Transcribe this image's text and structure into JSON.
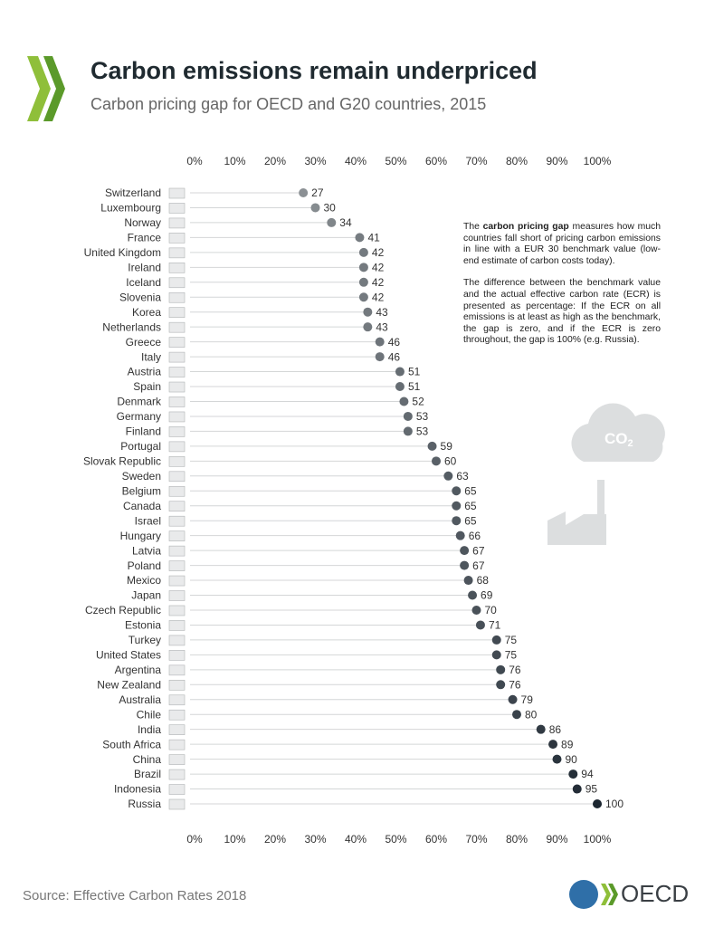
{
  "chart_data": {
    "type": "dot",
    "title": "Carbon emissions remain underpriced",
    "subtitle": "Carbon pricing gap for OECD and G20 countries, 2015",
    "categories": [
      "Switzerland",
      "Luxembourg",
      "Norway",
      "France",
      "United Kingdom",
      "Ireland",
      "Iceland",
      "Slovenia",
      "Korea",
      "Netherlands",
      "Greece",
      "Italy",
      "Austria",
      "Spain",
      "Denmark",
      "Germany",
      "Finland",
      "Portugal",
      "Slovak Republic",
      "Sweden",
      "Belgium",
      "Canada",
      "Israel",
      "Hungary",
      "Latvia",
      "Poland",
      "Mexico",
      "Japan",
      "Czech Republic",
      "Estonia",
      "Turkey",
      "United States",
      "Argentina",
      "New Zealand",
      "Australia",
      "Chile",
      "India",
      "South Africa",
      "China",
      "Brazil",
      "Indonesia",
      "Russia"
    ],
    "values": [
      27,
      30,
      34,
      41,
      42,
      42,
      42,
      42,
      43,
      43,
      46,
      46,
      51,
      51,
      52,
      53,
      53,
      59,
      60,
      63,
      65,
      65,
      65,
      66,
      67,
      67,
      68,
      69,
      70,
      71,
      75,
      75,
      76,
      76,
      79,
      80,
      86,
      89,
      90,
      94,
      95,
      100
    ],
    "color_range": [
      "#b4b7b9",
      "#1c2630"
    ],
    "xlim": [
      0,
      100
    ],
    "xticks": [
      {
        "value": 0,
        "label": "0%"
      },
      {
        "value": 10,
        "label": "10%"
      },
      {
        "value": 20,
        "label": "20%"
      },
      {
        "value": 30,
        "label": "30%"
      },
      {
        "value": 40,
        "label": "40%"
      },
      {
        "value": 50,
        "label": "50%"
      },
      {
        "value": 60,
        "label": "60%"
      },
      {
        "value": 70,
        "label": "70%"
      },
      {
        "value": 80,
        "label": "80%"
      },
      {
        "value": 90,
        "label": "90%"
      },
      {
        "value": 100,
        "label": "100%"
      }
    ],
    "annotation": [
      [
        "The ",
        "carbon pricing gap",
        " measures how much countries fall short of pricing carbon emissions in line with a EUR 30 benchmark value (low-end estimate of carbon costs today)."
      ],
      [
        "The difference between the benchmark value and the actual effective carbon rate (ECR) is presented as percentage: If the ECR on all emissions is at least as high as the benchmark, the gap is zero, and if the ECR is zero throughout, the gap is 100% (e.g. Russia)."
      ]
    ],
    "icon_label": [
      "CO",
      "2"
    ],
    "source": "Source: Effective Carbon Rates 2018",
    "logo": "OECD"
  }
}
